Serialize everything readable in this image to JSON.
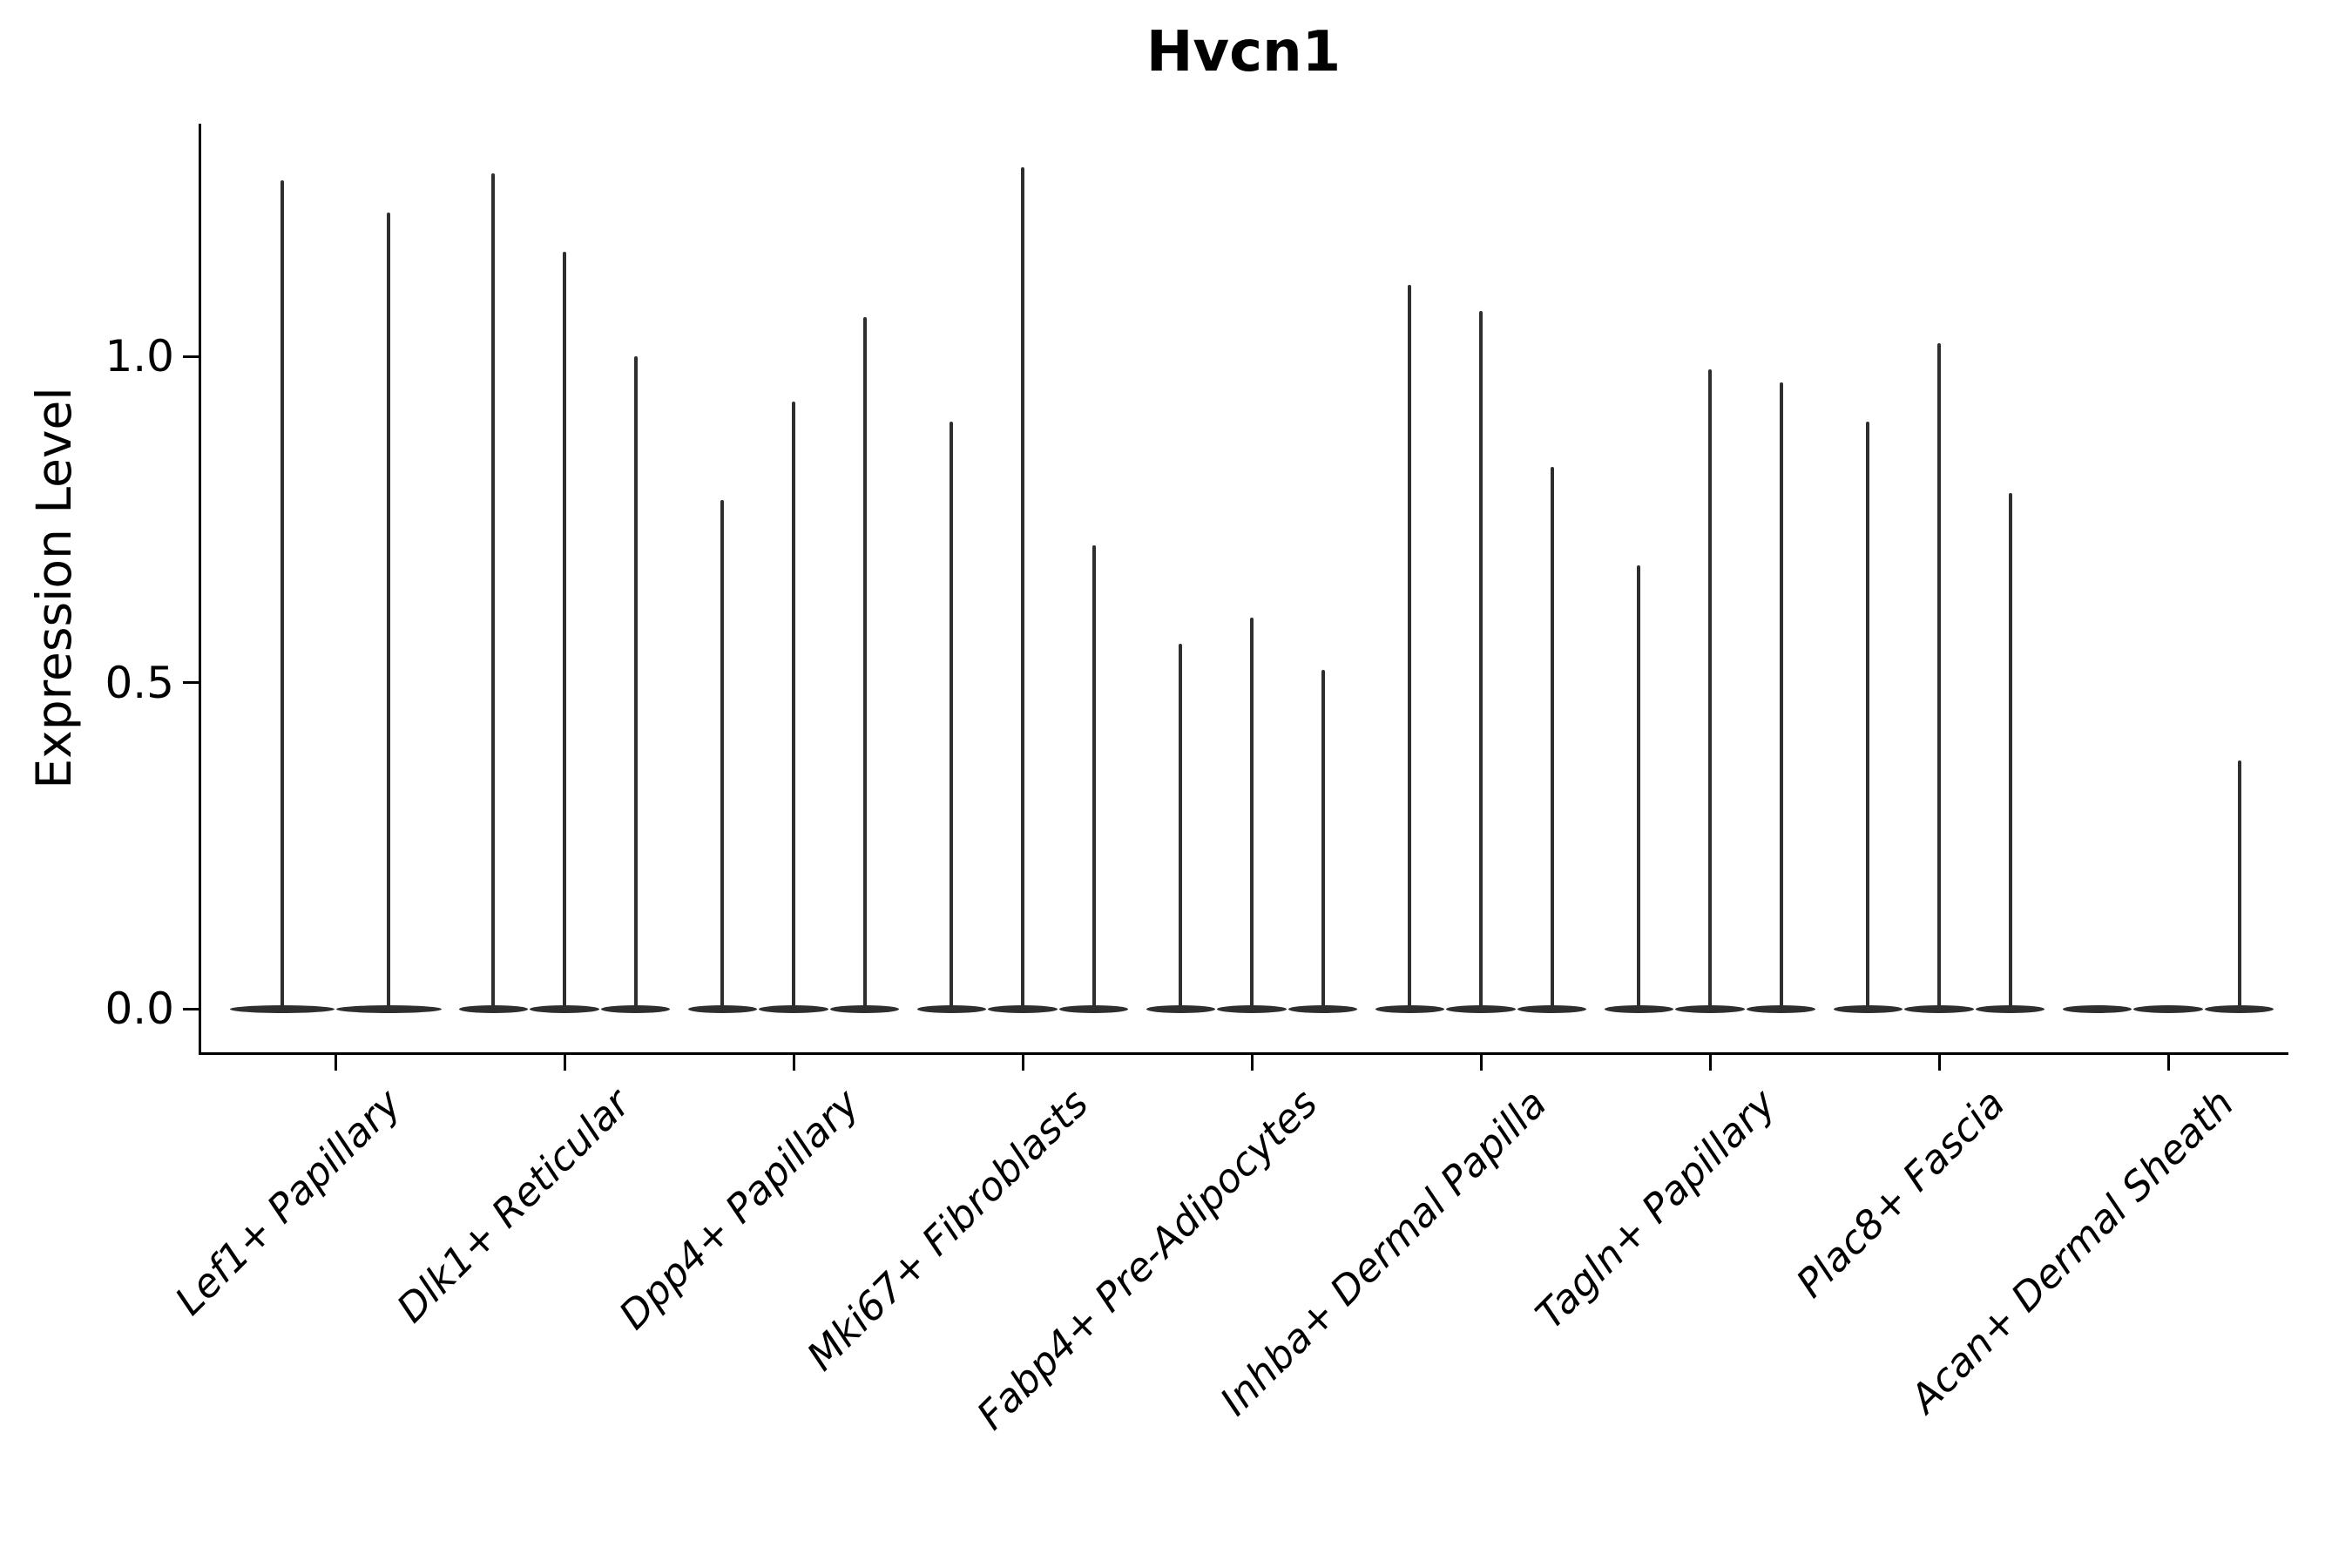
{
  "figure": {
    "background_color": "#ffffff",
    "text_color": "#000000",
    "axis_color": "#000000",
    "violin_color": "#2e2e2e"
  },
  "chart_data": {
    "type": "violin",
    "title": "Hvcn1",
    "xlabel": "",
    "ylabel": "Expression Level",
    "grid": false,
    "legend": "none",
    "ylim": [
      -0.07,
      1.36
    ],
    "yticks": {
      "labels": [
        "0.0",
        "0.5",
        "1.0"
      ],
      "values": [
        0.0,
        0.5,
        1.0
      ]
    },
    "categories": [
      "Lef1+ Papillary",
      "Dlk1+ Reticular",
      "Dpp4+ Papillary",
      "Mki67+ Fibroblasts",
      "Fabp4+ Pre-Adipocytes",
      "Inhba+ Dermal Papilla",
      "Tagln+ Papillary",
      "Plac8+ Fascia",
      "Acan+ Dermal Sheath"
    ],
    "violins": [
      {
        "category": "Lef1+ Papillary",
        "violin_max_expression": [
          1.27,
          1.22
        ],
        "bulk_at": 0.0
      },
      {
        "category": "Dlk1+ Reticular",
        "violin_max_expression": [
          1.28,
          1.16,
          1.0
        ],
        "bulk_at": 0.0
      },
      {
        "category": "Dpp4+ Papillary",
        "violin_max_expression": [
          0.78,
          0.93,
          1.06
        ],
        "bulk_at": 0.0
      },
      {
        "category": "Mki67+ Fibroblasts",
        "violin_max_expression": [
          0.9,
          1.29,
          0.71
        ],
        "bulk_at": 0.0
      },
      {
        "category": "Fabp4+ Pre-Adipocytes",
        "violin_max_expression": [
          0.56,
          0.6,
          0.52
        ],
        "bulk_at": 0.0
      },
      {
        "category": "Inhba+ Dermal Papilla",
        "violin_max_expression": [
          1.11,
          1.07,
          0.83
        ],
        "bulk_at": 0.0
      },
      {
        "category": "Tagln+ Papillary",
        "violin_max_expression": [
          0.68,
          0.98,
          0.96
        ],
        "bulk_at": 0.0
      },
      {
        "category": "Plac8+ Fascia",
        "violin_max_expression": [
          0.9,
          1.02,
          0.79
        ],
        "bulk_at": 0.0
      },
      {
        "category": "Acan+ Dermal Sheath",
        "violin_max_expression": [
          0.0,
          0.0,
          0.38
        ],
        "bulk_at": 0.0
      }
    ]
  }
}
